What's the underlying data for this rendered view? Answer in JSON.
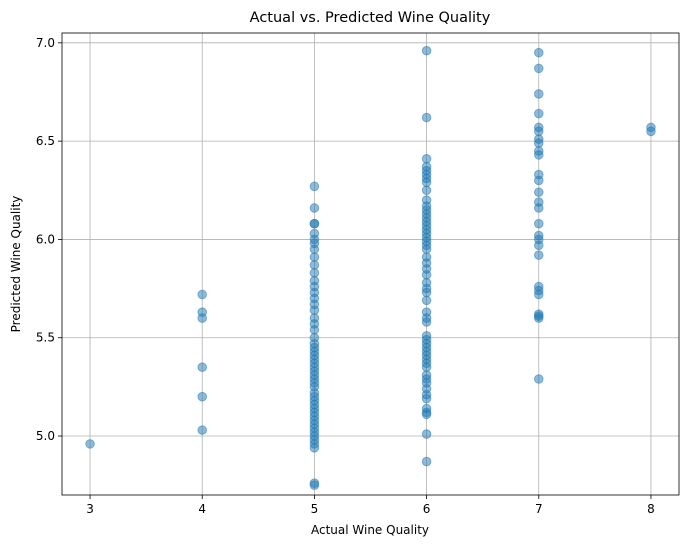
{
  "chart_data": {
    "type": "scatter",
    "title": "Actual vs. Predicted Wine Quality",
    "xlabel": "Actual Wine Quality",
    "ylabel": "Predicted Wine Quality",
    "xlim": [
      2.75,
      8.25
    ],
    "ylim": [
      4.7,
      7.05
    ],
    "xticks": [
      "3",
      "4",
      "5",
      "6",
      "7",
      "8"
    ],
    "yticks": [
      "5.0",
      "5.5",
      "6.0",
      "6.5",
      "7.0"
    ],
    "grid": true,
    "marker_color": "#1f77b4",
    "marker_alpha": 0.5,
    "series": [
      {
        "points": [
          [
            3,
            4.96
          ],
          [
            4,
            5.72
          ],
          [
            4,
            5.63
          ],
          [
            4,
            5.6
          ],
          [
            4,
            5.35
          ],
          [
            4,
            5.2
          ],
          [
            4,
            5.03
          ],
          [
            5,
            6.27
          ],
          [
            5,
            6.16
          ],
          [
            5,
            6.08
          ],
          [
            5,
            6.08
          ],
          [
            5,
            6.03
          ],
          [
            5,
            6.0
          ],
          [
            5,
            5.98
          ],
          [
            5,
            5.95
          ],
          [
            5,
            5.91
          ],
          [
            5,
            5.87
          ],
          [
            5,
            5.83
          ],
          [
            5,
            5.79
          ],
          [
            5,
            5.76
          ],
          [
            5,
            5.73
          ],
          [
            5,
            5.7
          ],
          [
            5,
            5.67
          ],
          [
            5,
            5.64
          ],
          [
            5,
            5.6
          ],
          [
            5,
            5.57
          ],
          [
            5,
            5.54
          ],
          [
            5,
            5.5
          ],
          [
            5,
            5.47
          ],
          [
            5,
            5.45
          ],
          [
            5,
            5.43
          ],
          [
            5,
            5.41
          ],
          [
            5,
            5.39
          ],
          [
            5,
            5.37
          ],
          [
            5,
            5.35
          ],
          [
            5,
            5.33
          ],
          [
            5,
            5.31
          ],
          [
            5,
            5.29
          ],
          [
            5,
            5.27
          ],
          [
            5,
            5.25
          ],
          [
            5,
            5.22
          ],
          [
            5,
            5.2
          ],
          [
            5,
            5.18
          ],
          [
            5,
            5.16
          ],
          [
            5,
            5.14
          ],
          [
            5,
            5.12
          ],
          [
            5,
            5.1
          ],
          [
            5,
            5.08
          ],
          [
            5,
            5.06
          ],
          [
            5,
            5.04
          ],
          [
            5,
            5.02
          ],
          [
            5,
            5.0
          ],
          [
            5,
            4.98
          ],
          [
            5,
            4.96
          ],
          [
            5,
            4.94
          ],
          [
            5,
            4.76
          ],
          [
            5,
            4.75
          ],
          [
            6,
            6.96
          ],
          [
            6,
            6.62
          ],
          [
            6,
            6.41
          ],
          [
            6,
            6.37
          ],
          [
            6,
            6.35
          ],
          [
            6,
            6.33
          ],
          [
            6,
            6.31
          ],
          [
            6,
            6.29
          ],
          [
            6,
            6.25
          ],
          [
            6,
            6.2
          ],
          [
            6,
            6.17
          ],
          [
            6,
            6.15
          ],
          [
            6,
            6.13
          ],
          [
            6,
            6.11
          ],
          [
            6,
            6.09
          ],
          [
            6,
            6.07
          ],
          [
            6,
            6.05
          ],
          [
            6,
            6.03
          ],
          [
            6,
            6.01
          ],
          [
            6,
            5.99
          ],
          [
            6,
            5.97
          ],
          [
            6,
            5.95
          ],
          [
            6,
            5.91
          ],
          [
            6,
            5.88
          ],
          [
            6,
            5.85
          ],
          [
            6,
            5.82
          ],
          [
            6,
            5.78
          ],
          [
            6,
            5.75
          ],
          [
            6,
            5.73
          ],
          [
            6,
            5.69
          ],
          [
            6,
            5.63
          ],
          [
            6,
            5.6
          ],
          [
            6,
            5.58
          ],
          [
            6,
            5.51
          ],
          [
            6,
            5.49
          ],
          [
            6,
            5.47
          ],
          [
            6,
            5.45
          ],
          [
            6,
            5.43
          ],
          [
            6,
            5.41
          ],
          [
            6,
            5.39
          ],
          [
            6,
            5.37
          ],
          [
            6,
            5.35
          ],
          [
            6,
            5.31
          ],
          [
            6,
            5.29
          ],
          [
            6,
            5.27
          ],
          [
            6,
            5.24
          ],
          [
            6,
            5.21
          ],
          [
            6,
            5.19
          ],
          [
            6,
            5.14
          ],
          [
            6,
            5.12
          ],
          [
            6,
            5.11
          ],
          [
            6,
            5.01
          ],
          [
            6,
            4.87
          ],
          [
            7,
            6.95
          ],
          [
            7,
            6.87
          ],
          [
            7,
            6.74
          ],
          [
            7,
            6.64
          ],
          [
            7,
            6.57
          ],
          [
            7,
            6.55
          ],
          [
            7,
            6.51
          ],
          [
            7,
            6.49
          ],
          [
            7,
            6.45
          ],
          [
            7,
            6.43
          ],
          [
            7,
            6.33
          ],
          [
            7,
            6.3
          ],
          [
            7,
            6.24
          ],
          [
            7,
            6.19
          ],
          [
            7,
            6.16
          ],
          [
            7,
            6.08
          ],
          [
            7,
            6.02
          ],
          [
            7,
            6.0
          ],
          [
            7,
            5.97
          ],
          [
            7,
            5.92
          ],
          [
            7,
            5.76
          ],
          [
            7,
            5.74
          ],
          [
            7,
            5.72
          ],
          [
            7,
            5.62
          ],
          [
            7,
            5.61
          ],
          [
            7,
            5.6
          ],
          [
            7,
            5.29
          ],
          [
            8,
            6.57
          ],
          [
            8,
            6.55
          ]
        ]
      }
    ]
  }
}
